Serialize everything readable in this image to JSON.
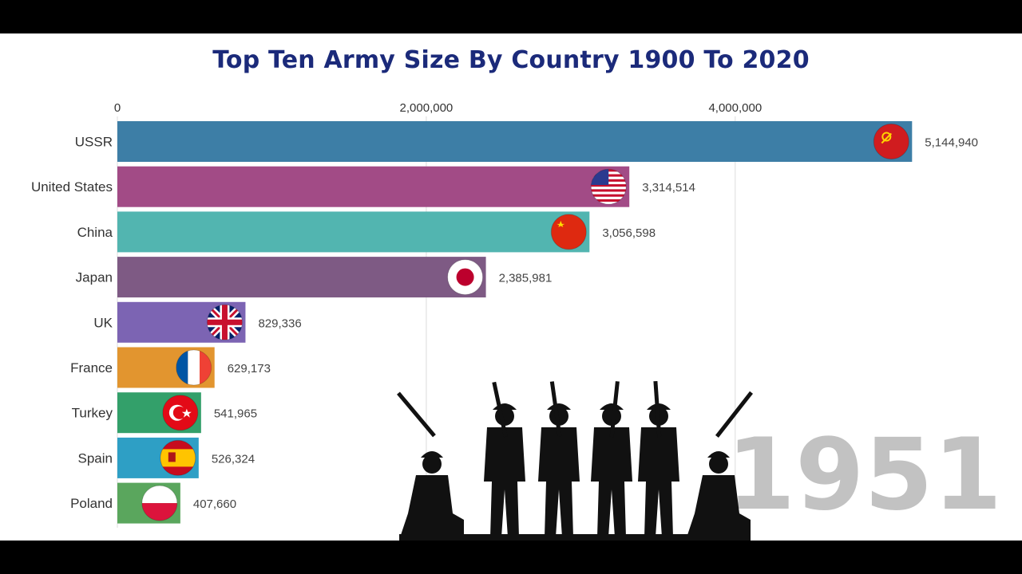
{
  "chart_data": {
    "type": "bar",
    "orientation": "horizontal",
    "title": "Top Ten Army Size By Country 1900 To 2020",
    "period_label": "1951",
    "xlim": [
      0,
      5500000
    ],
    "x_ticks": [
      0,
      2000000,
      4000000
    ],
    "x_tick_labels": [
      "0",
      "2,000,000",
      "4,000,000"
    ],
    "grid": true,
    "categories": [
      "USSR",
      "United States",
      "China",
      "Japan",
      "UK",
      "France",
      "Turkey",
      "Spain",
      "Poland"
    ],
    "values": [
      5144940,
      3314514,
      3056598,
      2385981,
      829336,
      629173,
      541965,
      526324,
      407660
    ],
    "value_labels": [
      "5,144,940",
      "3,314,514",
      "3,056,598",
      "2,385,981",
      "829,336",
      "629,173",
      "541,965",
      "526,324",
      "407,660"
    ],
    "colors": [
      "#3d7ea6",
      "#a24b86",
      "#52b5b0",
      "#7e5a84",
      "#7c64b3",
      "#e2952f",
      "#33a06a",
      "#2e9fc5",
      "#5aa65d"
    ],
    "flags": [
      "ussr-flag-icon",
      "usa-flag-icon",
      "china-flag-icon",
      "japan-flag-icon",
      "uk-flag-icon",
      "france-flag-icon",
      "turkey-flag-icon",
      "spain-flag-icon",
      "poland-flag-icon"
    ]
  },
  "decoration": {
    "silhouette": "soldiers-silhouette-icon"
  }
}
